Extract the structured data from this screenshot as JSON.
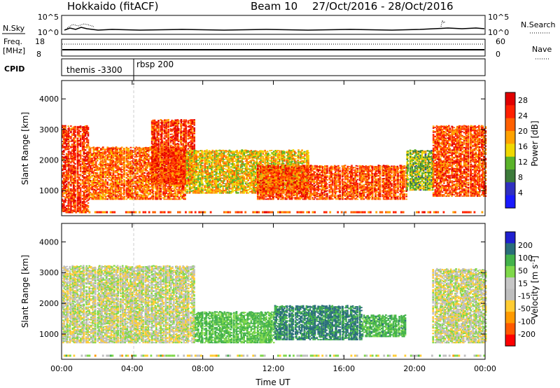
{
  "header": {
    "station": "Hokkaido (fitACF)",
    "beam": "Beam 10",
    "date_range": "27/Oct/2016 - 28/Oct/2016"
  },
  "panels": {
    "nsky": {
      "left_label": "N.Sky",
      "right_label": "N.Search",
      "left_ticks": [
        "10^5",
        "10^0"
      ],
      "right_ticks": [
        "10^5",
        "10^0"
      ]
    },
    "freq": {
      "left_label_line1": "Freq.",
      "left_label_line2": "[MHz]",
      "left_ticks": [
        "18",
        "8"
      ],
      "right_label": "Nave",
      "right_ticks": [
        "60",
        "0"
      ]
    },
    "cpid": {
      "label": "CPID",
      "segments": [
        "themis -3300",
        "rbsp 200"
      ]
    }
  },
  "colors": {
    "power": [
      "#1a1aff",
      "#3030c0",
      "#3c7a3a",
      "#5ab32a",
      "#f0d800",
      "#ffa200",
      "#ff6000",
      "#ff2000",
      "#e00000"
    ],
    "velocity": [
      "#ff0000",
      "#ff5a00",
      "#ff9a00",
      "#ffcc33",
      "#bebebe",
      "#c6c6c6",
      "#7fd84a",
      "#43b24a",
      "#2a6e7a",
      "#2020d0"
    ]
  },
  "chart_data": [
    {
      "type": "heatmap",
      "title": "",
      "xlabel": "",
      "ylabel": "Slant Range [km]",
      "x_ticks": [
        "00:00",
        "04:00",
        "08:00",
        "12:00",
        "16:00",
        "20:00",
        "00:00"
      ],
      "xlim_hours": [
        0,
        24
      ],
      "y_ticks": [
        1000,
        2000,
        3000,
        4000
      ],
      "ylim": [
        180,
        4600
      ],
      "colorbar_label": "Power [dB]",
      "colorbar_ticks": [
        4,
        8,
        12,
        16,
        20,
        24,
        28
      ],
      "colorbar_range": [
        0,
        30
      ],
      "regions": [
        {
          "start": 0.0,
          "end": 1.5,
          "min_range": 300,
          "max_range": 3100,
          "level": 0.85
        },
        {
          "start": 1.5,
          "end": 7.0,
          "min_range": 700,
          "max_range": 2400,
          "level": 0.75
        },
        {
          "start": 5.0,
          "end": 7.5,
          "min_range": 1200,
          "max_range": 3300,
          "level": 0.85
        },
        {
          "start": 7.0,
          "end": 14.0,
          "min_range": 900,
          "max_range": 2300,
          "level": 0.55
        },
        {
          "start": 11.0,
          "end": 19.5,
          "min_range": 700,
          "max_range": 1800,
          "level": 0.8
        },
        {
          "start": 19.5,
          "end": 21.0,
          "min_range": 1000,
          "max_range": 2300,
          "level": 0.4
        },
        {
          "start": 21.0,
          "end": 24.0,
          "min_range": 800,
          "max_range": 3100,
          "level": 0.8
        }
      ]
    },
    {
      "type": "heatmap",
      "title": "",
      "xlabel": "Time UT",
      "ylabel": "Slant Range [km]",
      "x_ticks": [
        "00:00",
        "04:00",
        "08:00",
        "12:00",
        "16:00",
        "20:00",
        "00:00"
      ],
      "xlim_hours": [
        0,
        24
      ],
      "y_ticks": [
        1000,
        2000,
        3000,
        4000
      ],
      "ylim": [
        180,
        4600
      ],
      "colorbar_label": "Velocity [m s^-1]",
      "colorbar_ticks": [
        200,
        100,
        50,
        15,
        -15,
        -50,
        -100,
        -200
      ],
      "colorbar_range": [
        -250,
        250
      ],
      "regions": [
        {
          "start": 0.0,
          "end": 7.5,
          "min_range": 700,
          "max_range": 3200,
          "value": 0
        },
        {
          "start": 7.5,
          "end": 12.0,
          "min_range": 700,
          "max_range": 1700,
          "value": 60
        },
        {
          "start": 12.0,
          "end": 17.0,
          "min_range": 800,
          "max_range": 1900,
          "value": 110
        },
        {
          "start": 17.0,
          "end": 19.5,
          "min_range": 900,
          "max_range": 1600,
          "value": 70
        },
        {
          "start": 21.0,
          "end": 24.0,
          "min_range": 700,
          "max_range": 3100,
          "value": 0
        }
      ]
    }
  ]
}
